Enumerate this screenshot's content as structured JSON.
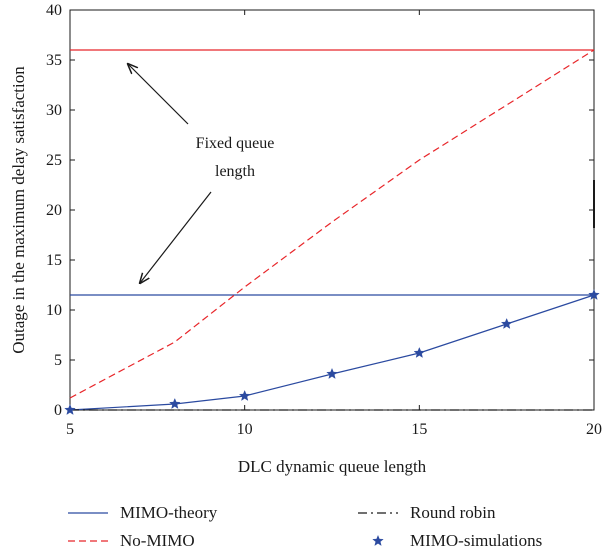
{
  "chart_data": {
    "type": "line",
    "xlabel": "DLC dynamic queue length",
    "ylabel": "Outage in the maximum delay satisfaction",
    "xlim": [
      5,
      20
    ],
    "ylim": [
      0,
      40
    ],
    "x_ticks": [
      5,
      10,
      15,
      20
    ],
    "y_ticks": [
      0,
      5,
      10,
      15,
      20,
      25,
      30,
      35,
      40
    ],
    "grid": false,
    "legend_position": "bottom",
    "annotation": {
      "lines": [
        "Fixed queue",
        "length"
      ]
    },
    "series": [
      {
        "name": "MIMO-theory",
        "style": "solid",
        "color": "#2b4aa0",
        "x": [
          5,
          8,
          10,
          12.5,
          15,
          17.5,
          20
        ],
        "y": [
          0,
          0.6,
          1.4,
          3.6,
          5.7,
          8.6,
          11.5
        ]
      },
      {
        "name": "No-MIMO",
        "style": "dashed",
        "color": "#e8262a",
        "x": [
          5,
          8,
          10,
          12.5,
          15,
          17.5,
          20
        ],
        "y": [
          1.2,
          6.8,
          12.3,
          18.8,
          25.0,
          30.5,
          36.0
        ]
      },
      {
        "name": "Round robin",
        "style": "dashdot",
        "color": "#1a1a1a",
        "x": [
          5,
          20
        ],
        "y": [
          0,
          0
        ]
      },
      {
        "name": "MIMO-simulations",
        "style": "markers",
        "marker": "star",
        "color": "#2b4aa0",
        "x": [
          5,
          8,
          10,
          12.5,
          15,
          17.5,
          20
        ],
        "y": [
          0,
          0.6,
          1.4,
          3.6,
          5.7,
          8.6,
          11.5
        ]
      }
    ],
    "reference_lines": [
      {
        "series": "No-MIMO",
        "label": "Fixed queue length",
        "y": 36.0,
        "color": "#e8262a"
      },
      {
        "series": "MIMO-theory",
        "label": "Fixed queue length",
        "y": 11.5,
        "color": "#2b4aa0"
      }
    ],
    "legend": [
      {
        "label": "MIMO-theory",
        "series": "MIMO-theory"
      },
      {
        "label": "Round robin",
        "series": "Round robin"
      },
      {
        "label": "No-MIMO",
        "series": "No-MIMO"
      },
      {
        "label": "MIMO-simulations",
        "series": "MIMO-simulations"
      }
    ]
  }
}
